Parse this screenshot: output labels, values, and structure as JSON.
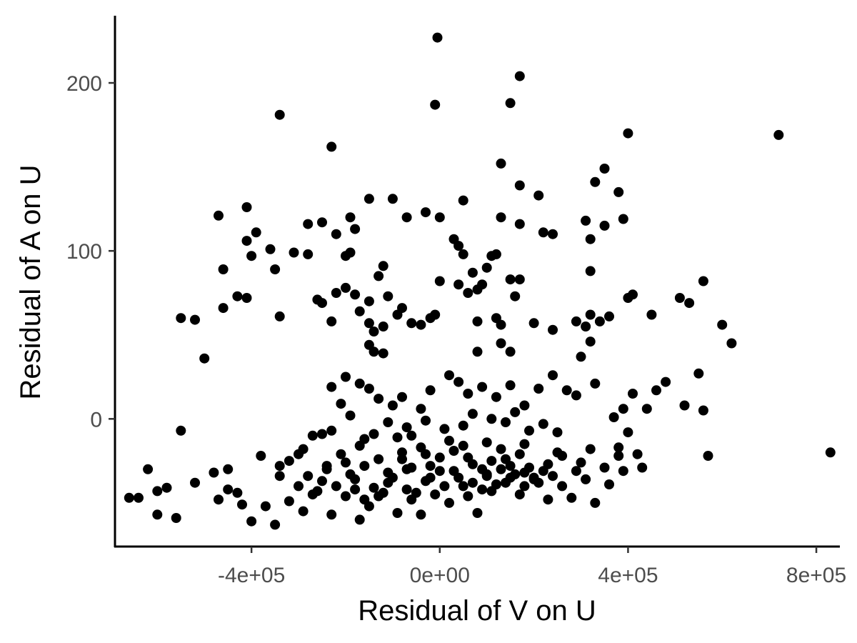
{
  "chart_data": {
    "type": "scatter",
    "title": "",
    "xlabel": "Residual of V on U",
    "ylabel": "Residual of A on U",
    "xlim": [
      -690000,
      850000
    ],
    "ylim": [
      -76,
      240
    ],
    "x_ticks": [
      {
        "value": -400000,
        "label": "-4e+05"
      },
      {
        "value": 0,
        "label": "0e+00"
      },
      {
        "value": 400000,
        "label": "4e+05"
      },
      {
        "value": 800000,
        "label": "8e+05"
      }
    ],
    "y_ticks": [
      {
        "value": 0,
        "label": "0"
      },
      {
        "value": 100,
        "label": "100"
      },
      {
        "value": 200,
        "label": "200"
      }
    ],
    "grid": false,
    "legend": "none",
    "point_color": "#000000",
    "points": [
      [
        -5000,
        227
      ],
      [
        170000,
        204
      ],
      [
        -10000,
        187
      ],
      [
        150000,
        188
      ],
      [
        -340000,
        181
      ],
      [
        400000,
        170
      ],
      [
        720000,
        169
      ],
      [
        -230000,
        162
      ],
      [
        130000,
        152
      ],
      [
        350000,
        149
      ],
      [
        330000,
        141
      ],
      [
        170000,
        139
      ],
      [
        210000,
        133
      ],
      [
        380000,
        135
      ],
      [
        -410000,
        126
      ],
      [
        -470000,
        121
      ],
      [
        -30000,
        123
      ],
      [
        0,
        120
      ],
      [
        50000,
        130
      ],
      [
        -100000,
        131
      ],
      [
        -150000,
        131
      ],
      [
        -190000,
        120
      ],
      [
        130000,
        120
      ],
      [
        -70000,
        120
      ],
      [
        170000,
        116
      ],
      [
        310000,
        118
      ],
      [
        -280000,
        116
      ],
      [
        -250000,
        117
      ],
      [
        -180000,
        113
      ],
      [
        -220000,
        110
      ],
      [
        390000,
        119
      ],
      [
        350000,
        115
      ],
      [
        220000,
        111
      ],
      [
        240000,
        110
      ],
      [
        -390000,
        111
      ],
      [
        -410000,
        106
      ],
      [
        -360000,
        101
      ],
      [
        -400000,
        97
      ],
      [
        -310000,
        99
      ],
      [
        -280000,
        98
      ],
      [
        -200000,
        97
      ],
      [
        -190000,
        99
      ],
      [
        30000,
        107
      ],
      [
        40000,
        103
      ],
      [
        50000,
        98
      ],
      [
        110000,
        97
      ],
      [
        120000,
        98
      ],
      [
        320000,
        107
      ],
      [
        -460000,
        89
      ],
      [
        -350000,
        89
      ],
      [
        -120000,
        91
      ],
      [
        -130000,
        85
      ],
      [
        70000,
        87
      ],
      [
        100000,
        90
      ],
      [
        150000,
        83
      ],
      [
        170000,
        83
      ],
      [
        320000,
        88
      ],
      [
        -430000,
        73
      ],
      [
        -410000,
        72
      ],
      [
        -260000,
        71
      ],
      [
        -250000,
        69
      ],
      [
        -220000,
        75
      ],
      [
        -200000,
        78
      ],
      [
        -180000,
        74
      ],
      [
        -110000,
        73
      ],
      [
        0,
        82
      ],
      [
        40000,
        80
      ],
      [
        60000,
        75
      ],
      [
        80000,
        77
      ],
      [
        90000,
        80
      ],
      [
        160000,
        73
      ],
      [
        -150000,
        70
      ],
      [
        -170000,
        64
      ],
      [
        -550000,
        60
      ],
      [
        -520000,
        59
      ],
      [
        -460000,
        66
      ],
      [
        -340000,
        61
      ],
      [
        -230000,
        58
      ],
      [
        -150000,
        57
      ],
      [
        -140000,
        52
      ],
      [
        -120000,
        55
      ],
      [
        -90000,
        62
      ],
      [
        -80000,
        66
      ],
      [
        -60000,
        57
      ],
      [
        -40000,
        56
      ],
      [
        -20000,
        60
      ],
      [
        -10000,
        62
      ],
      [
        80000,
        58
      ],
      [
        120000,
        60
      ],
      [
        130000,
        56
      ],
      [
        200000,
        57
      ],
      [
        240000,
        53
      ],
      [
        290000,
        58
      ],
      [
        310000,
        55
      ],
      [
        320000,
        62
      ],
      [
        340000,
        58
      ],
      [
        360000,
        61
      ],
      [
        400000,
        72
      ],
      [
        410000,
        74
      ],
      [
        450000,
        62
      ],
      [
        510000,
        72
      ],
      [
        530000,
        69
      ],
      [
        560000,
        82
      ],
      [
        600000,
        56
      ],
      [
        620000,
        45
      ],
      [
        -500000,
        36
      ],
      [
        -150000,
        44
      ],
      [
        -140000,
        40
      ],
      [
        -120000,
        39
      ],
      [
        80000,
        40
      ],
      [
        130000,
        45
      ],
      [
        150000,
        40
      ],
      [
        300000,
        37
      ],
      [
        320000,
        46
      ],
      [
        330000,
        21
      ],
      [
        -550000,
        -7
      ],
      [
        -620000,
        -30
      ],
      [
        -580000,
        -41
      ],
      [
        -480000,
        -32
      ],
      [
        -450000,
        -42
      ],
      [
        -430000,
        -44
      ],
      [
        -380000,
        -22
      ],
      [
        -340000,
        -34
      ],
      [
        -300000,
        -21
      ],
      [
        -270000,
        -10
      ],
      [
        -240000,
        -28
      ],
      [
        -210000,
        -21
      ],
      [
        -190000,
        -33
      ],
      [
        -160000,
        -28
      ],
      [
        -130000,
        -24
      ],
      [
        -100000,
        -35
      ],
      [
        -80000,
        -20
      ],
      [
        -60000,
        -29
      ],
      [
        -40000,
        -17
      ],
      [
        -20000,
        -35
      ],
      [
        0,
        -23
      ],
      [
        30000,
        -31
      ],
      [
        50000,
        -16
      ],
      [
        70000,
        -27
      ],
      [
        100000,
        -33
      ],
      [
        130000,
        -18
      ],
      [
        150000,
        -28
      ],
      [
        170000,
        -21
      ],
      [
        200000,
        -35
      ],
      [
        230000,
        -27
      ],
      [
        260000,
        -22
      ],
      [
        290000,
        -31
      ],
      [
        320000,
        -18
      ],
      [
        350000,
        -29
      ],
      [
        380000,
        -22
      ],
      [
        -640000,
        -47
      ],
      [
        -600000,
        -57
      ],
      [
        -560000,
        -59
      ],
      [
        -520000,
        -38
      ],
      [
        -470000,
        -48
      ],
      [
        -420000,
        -51
      ],
      [
        -400000,
        -61
      ],
      [
        -370000,
        -52
      ],
      [
        -350000,
        -63
      ],
      [
        -320000,
        -49
      ],
      [
        -290000,
        -55
      ],
      [
        -260000,
        -43
      ],
      [
        -230000,
        -57
      ],
      [
        -200000,
        -46
      ],
      [
        -170000,
        -60
      ],
      [
        -150000,
        -52
      ],
      [
        -120000,
        -44
      ],
      [
        -90000,
        -56
      ],
      [
        -60000,
        -48
      ],
      [
        -40000,
        -57
      ],
      [
        -10000,
        -45
      ],
      [
        20000,
        -50
      ],
      [
        50000,
        -40
      ],
      [
        80000,
        -56
      ],
      [
        110000,
        -43
      ],
      [
        140000,
        -38
      ],
      [
        170000,
        -45
      ],
      [
        200000,
        -36
      ],
      [
        230000,
        -48
      ],
      [
        260000,
        -40
      ],
      [
        280000,
        -47
      ],
      [
        310000,
        -36
      ],
      [
        330000,
        -50
      ],
      [
        360000,
        -39
      ],
      [
        390000,
        -31
      ],
      [
        -250000,
        -37
      ],
      [
        -220000,
        -40
      ],
      [
        -180000,
        -36
      ],
      [
        -140000,
        -41
      ],
      [
        -110000,
        -38
      ],
      [
        -70000,
        -42
      ],
      [
        -30000,
        -37
      ],
      [
        10000,
        -40
      ],
      [
        40000,
        -35
      ],
      [
        70000,
        -38
      ],
      [
        100000,
        -34
      ],
      [
        130000,
        -30
      ],
      [
        160000,
        -33
      ],
      [
        190000,
        -29
      ],
      [
        220000,
        -31
      ],
      [
        -300000,
        -40
      ],
      [
        -270000,
        -45
      ],
      [
        -160000,
        -48
      ],
      [
        -130000,
        -46
      ],
      [
        -50000,
        -44
      ],
      [
        60000,
        -46
      ],
      [
        90000,
        -42
      ],
      [
        120000,
        -39
      ],
      [
        180000,
        -40
      ],
      [
        210000,
        -38
      ],
      [
        -200000,
        25
      ],
      [
        -170000,
        21
      ],
      [
        -150000,
        18
      ],
      [
        -130000,
        12
      ],
      [
        -100000,
        8
      ],
      [
        -80000,
        13
      ],
      [
        -40000,
        6
      ],
      [
        -20000,
        17
      ],
      [
        20000,
        26
      ],
      [
        40000,
        22
      ],
      [
        60000,
        15
      ],
      [
        90000,
        19
      ],
      [
        120000,
        13
      ],
      [
        150000,
        20
      ],
      [
        180000,
        8
      ],
      [
        210000,
        18
      ],
      [
        240000,
        26
      ],
      [
        270000,
        17
      ],
      [
        290000,
        14
      ],
      [
        -230000,
        19
      ],
      [
        -210000,
        9
      ],
      [
        -190000,
        2
      ],
      [
        -110000,
        -2
      ],
      [
        -70000,
        -5
      ],
      [
        -30000,
        -1
      ],
      [
        10000,
        -6
      ],
      [
        50000,
        -4
      ],
      [
        70000,
        3
      ],
      [
        110000,
        0
      ],
      [
        140000,
        -2
      ],
      [
        160000,
        4
      ],
      [
        190000,
        -7
      ],
      [
        220000,
        -3
      ],
      [
        250000,
        -8
      ],
      [
        370000,
        1
      ],
      [
        390000,
        6
      ],
      [
        400000,
        -8
      ],
      [
        410000,
        15
      ],
      [
        440000,
        6
      ],
      [
        460000,
        17
      ],
      [
        480000,
        22
      ],
      [
        520000,
        8
      ],
      [
        550000,
        27
      ],
      [
        560000,
        5
      ],
      [
        570000,
        -22
      ],
      [
        380000,
        -17
      ],
      [
        420000,
        -21
      ],
      [
        430000,
        -29
      ],
      [
        830000,
        -20
      ],
      [
        -660000,
        -47
      ],
      [
        -600000,
        -43
      ],
      [
        -450000,
        -30
      ],
      [
        -250000,
        -9
      ],
      [
        -230000,
        -7
      ],
      [
        -160000,
        -12
      ],
      [
        -140000,
        -9
      ],
      [
        -90000,
        -11
      ],
      [
        -60000,
        -10
      ],
      [
        20000,
        -13
      ],
      [
        100000,
        -14
      ],
      [
        -340000,
        -28
      ],
      [
        -320000,
        -25
      ],
      [
        -290000,
        -18
      ],
      [
        -200000,
        -26
      ],
      [
        -170000,
        -16
      ],
      [
        -80000,
        -24
      ],
      [
        -30000,
        -21
      ],
      [
        30000,
        -19
      ],
      [
        60000,
        -23
      ],
      [
        140000,
        -24
      ],
      [
        180000,
        -15
      ],
      [
        250000,
        -20
      ],
      [
        300000,
        -26
      ],
      [
        -280000,
        -34
      ],
      [
        -240000,
        -30
      ],
      [
        -180000,
        -42
      ],
      [
        -110000,
        -32
      ],
      [
        -70000,
        -30
      ],
      [
        -20000,
        -28
      ],
      [
        0,
        -31
      ],
      [
        90000,
        -30
      ],
      [
        110000,
        -25
      ],
      [
        150000,
        -35
      ],
      [
        180000,
        -32
      ],
      [
        240000,
        -34
      ]
    ]
  }
}
